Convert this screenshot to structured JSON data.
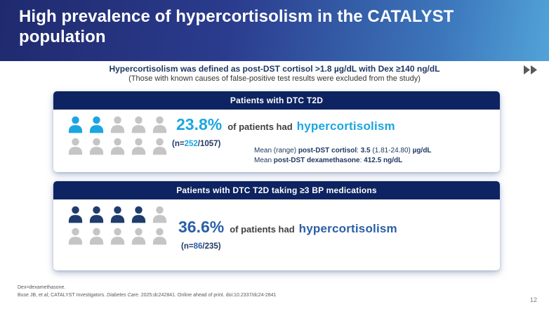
{
  "slide": {
    "title": "High prevalence of hypercortisolism in the CATALYST population",
    "page_number": "12"
  },
  "definition": {
    "line1": "Hypercortisolism was defined as post-DST cortisol >1.8 µg/dL with Dex ≥140 ng/dL",
    "line2": "(Those with known causes of false-positive test results were excluded from the study)"
  },
  "nav": {
    "forward_icon": "double-right-arrows",
    "icon_color": "#595959"
  },
  "colors": {
    "banner_gradient_start": "#1f2a6e",
    "banner_gradient_end": "#52a3d9",
    "panel_header_bg": "#0e2361",
    "navy_text": "#1f3864",
    "light_blue_accent": "#1ba6e1",
    "royal_blue_accent": "#2a5fa8",
    "gray_icon": "#c5c5c5",
    "navy_icon": "#1f3c6d"
  },
  "panels": [
    {
      "header": "Patients with DTC T2D",
      "accent_color": "#1ba6e1",
      "pictogram": {
        "rows": 2,
        "cols": 5,
        "filled": 2,
        "filled_color": "#1ba6e1",
        "empty_color": "#c5c5c5",
        "icon": "person-icon"
      },
      "stat": {
        "percent": "23.8%",
        "connector": "of patients had",
        "term": "hypercortisolism"
      },
      "n": {
        "prefix": "(n=",
        "numerator": "252",
        "suffix": "/1057)"
      },
      "means": [
        [
          {
            "t": "Mean (range) "
          },
          {
            "t": "post-DST cortisol",
            "b": true
          },
          {
            "t": ": "
          },
          {
            "t": "3.5",
            "b": true
          },
          {
            "t": " (1.81-24.80) "
          },
          {
            "t": "µg/dL",
            "b": true
          }
        ],
        [
          {
            "t": "Mean "
          },
          {
            "t": "post-DST dexamethasone",
            "b": true
          },
          {
            "t": ": "
          },
          {
            "t": "412.5 ng/dL",
            "b": true
          }
        ]
      ]
    },
    {
      "header": "Patients with DTC T2D taking ≥3 BP medications",
      "accent_color": "#2a5fa8",
      "pictogram": {
        "rows": 2,
        "cols": 5,
        "filled": 4,
        "filled_color": "#1f3c6d",
        "empty_color": "#c5c5c5",
        "icon": "person-icon"
      },
      "stat": {
        "percent": "36.6%",
        "connector": "of patients had",
        "term": "hypercortisolism"
      },
      "n": {
        "prefix": "(n=",
        "numerator": "86",
        "suffix": "/235)"
      }
    }
  ],
  "footnotes": {
    "line1": "Dex=dexamethasone.",
    "line2_segments": [
      {
        "t": "Buse JB, et al; CATALYST Investigators. "
      },
      {
        "t": "Diabetes Care",
        "i": true
      },
      {
        "t": ". 2025:dc242841. Online ahead of print. doi:10.2337/dc24-2841"
      }
    ]
  }
}
